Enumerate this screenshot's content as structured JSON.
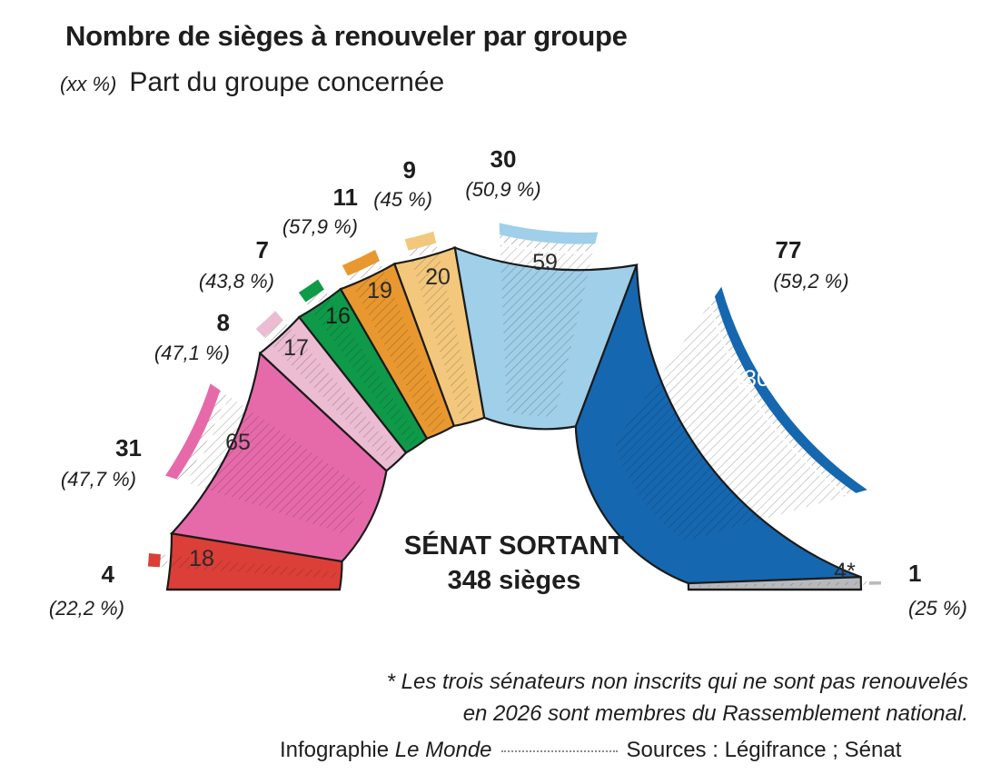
{
  "title": "Nombre de sièges à renouveler par groupe",
  "legend": {
    "key": "(xx %)",
    "label": "Part du groupe concernée"
  },
  "center": {
    "line1": "SÉNAT SORTANT",
    "line2": "348 sièges"
  },
  "note": {
    "line1": "* Les trois sénateurs non inscrits qui ne sont pas renouvelés",
    "line2": "en 2026 sont membres du Rassemblement national."
  },
  "credits": {
    "prefix": "Infographie ",
    "publication": "Le Monde",
    "sources": "Sources : Légifrance ; Sénat"
  },
  "chart_data": {
    "type": "hemicycle",
    "total_seats": 348,
    "groups": [
      {
        "seats": 18,
        "seats_label": "18",
        "renewed": 4,
        "renewed_label": "4",
        "share": "(22,2 %)",
        "color": "#dc3f37",
        "inner_text": "#2a2a2a"
      },
      {
        "seats": 65,
        "seats_label": "65",
        "renewed": 31,
        "renewed_label": "31",
        "share": "(47,7 %)",
        "color": "#e66aaa",
        "inner_text": "#2a2a2a"
      },
      {
        "seats": 17,
        "seats_label": "17",
        "renewed": 8,
        "renewed_label": "8",
        "share": "(47,1 %)",
        "color": "#ebbcd2",
        "inner_text": "#2a2a2a"
      },
      {
        "seats": 16,
        "seats_label": "16",
        "renewed": 7,
        "renewed_label": "7",
        "share": "(43,8 %)",
        "color": "#0e9a48",
        "inner_text": "#1a1a1a"
      },
      {
        "seats": 19,
        "seats_label": "19",
        "renewed": 11,
        "renewed_label": "11",
        "share": "(57,9 %)",
        "color": "#e8982f",
        "inner_text": "#2a2a2a"
      },
      {
        "seats": 20,
        "seats_label": "20",
        "renewed": 9,
        "renewed_label": "9",
        "share": "(45 %)",
        "color": "#f3c87c",
        "inner_text": "#2a2a2a"
      },
      {
        "seats": 59,
        "seats_label": "59",
        "renewed": 30,
        "renewed_label": "30",
        "share": "(50,9 %)",
        "color": "#9fcfe9",
        "inner_text": "#2a2a2a"
      },
      {
        "seats": 130,
        "seats_label": "130",
        "renewed": 77,
        "renewed_label": "77",
        "share": "(59,2 %)",
        "color": "#1567b0",
        "inner_text": "#ffffff"
      },
      {
        "seats": 4,
        "seats_label": "4*",
        "renewed": 1,
        "renewed_label": "1",
        "share": "(25 %)",
        "color": "#b8b9bd",
        "inner_text": "#2a2a2a"
      }
    ]
  }
}
